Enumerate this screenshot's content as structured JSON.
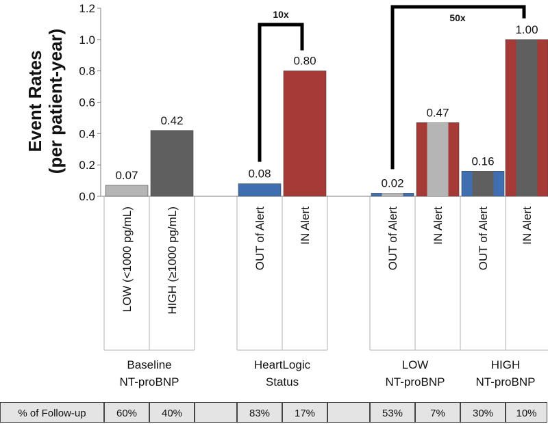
{
  "chart_data": {
    "type": "bar",
    "ylabel_line1": "Event Rates",
    "ylabel_line2": "(per patient-year)",
    "ylim": [
      0,
      1.2
    ],
    "yticks": [
      "0.0",
      "0.2",
      "0.4",
      "0.6",
      "0.8",
      "1.0",
      "1.2"
    ],
    "grid": false,
    "categories": [
      "LOW (<1000 pg/mL)",
      "HIGH (≥1000 pg/mL)",
      "OUT of Alert",
      "IN Alert",
      "OUT of Alert",
      "IN Alert",
      "OUT of Alert",
      "IN Alert"
    ],
    "values": [
      0.07,
      0.42,
      0.08,
      0.8,
      0.02,
      0.47,
      0.16,
      1.0
    ],
    "value_labels": [
      "0.07",
      "0.42",
      "0.08",
      "0.80",
      "0.02",
      "0.47",
      "0.16",
      "1.00"
    ],
    "bar_colors": [
      {
        "fill": "#b5b5b5",
        "stripe": null
      },
      {
        "fill": "#5f5f5f",
        "stripe": null
      },
      {
        "fill": "#3f6fb0",
        "stripe": null
      },
      {
        "fill": "#a53a36",
        "stripe": null
      },
      {
        "fill": "#3f6fb0",
        "stripe": "#b5b5b5"
      },
      {
        "fill": "#a53a36",
        "stripe": "#b5b5b5"
      },
      {
        "fill": "#3f6fb0",
        "stripe": "#5f5f5f"
      },
      {
        "fill": "#a53a36",
        "stripe": "#5f5f5f"
      }
    ],
    "groups": [
      {
        "line1": "Baseline",
        "line2": "NT-proBNP"
      },
      {
        "line1": "HeartLogic",
        "line2": "Status"
      },
      {
        "line1": "LOW",
        "line2": "NT-proBNP"
      },
      {
        "line1": "HIGH",
        "line2": "NT-proBNP"
      }
    ],
    "annotations": [
      {
        "label": "10x"
      },
      {
        "label": "50x"
      }
    ],
    "followup": {
      "label": "% of Follow-up",
      "values": [
        "60%",
        "40%",
        "83%",
        "17%",
        "53%",
        "7%",
        "30%",
        "10%"
      ]
    }
  }
}
